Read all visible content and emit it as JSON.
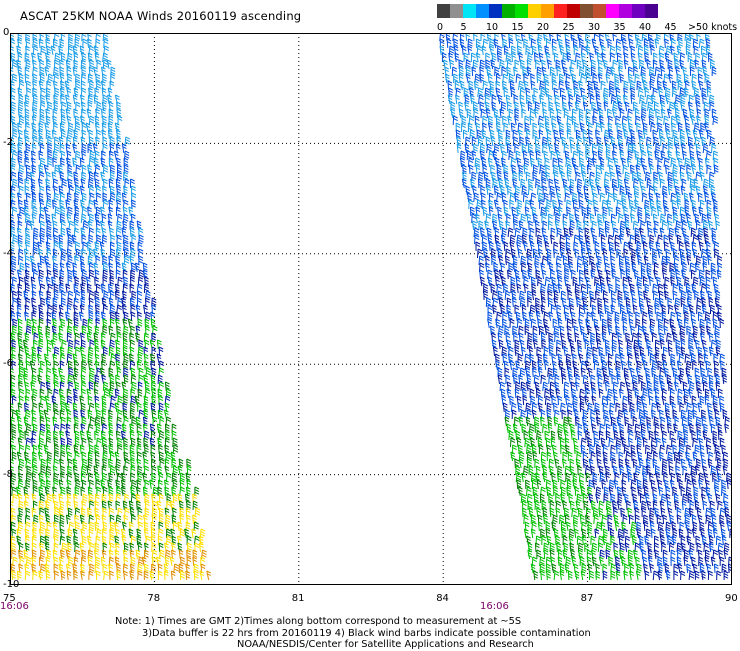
{
  "title": "ASCAT 25KM NOAA Winds 20160119 ascending",
  "legend": {
    "unit_label": ">50 knots",
    "labels": [
      "0",
      "5",
      "10",
      "15",
      "20",
      "25",
      "30",
      "35",
      "40",
      "45"
    ],
    "colors": [
      "#404040",
      "#909090",
      "#00e5f5",
      "#0090ff",
      "#0030c0",
      "#00b000",
      "#00e000",
      "#ffd000",
      "#ffa000",
      "#ff2020",
      "#c00000",
      "#805030",
      "#c05030",
      "#ff00ff",
      "#b000e0",
      "#7000c0",
      "#4a0090"
    ]
  },
  "axes": {
    "y_ticks": [
      "0",
      "-2",
      "-4",
      "-6",
      "-8",
      "-10"
    ],
    "x_ticks": [
      "75",
      "78",
      "81",
      "84",
      "87",
      "90"
    ],
    "time_labels": [
      "16:06",
      "16:06"
    ]
  },
  "swaths": [
    {
      "id": "west",
      "lon_range": [
        75,
        79.3
      ]
    },
    {
      "id": "east",
      "lon_range": [
        83.8,
        90
      ]
    }
  ],
  "wind_colors": {
    "light_blue": "#1a9de8",
    "blue": "#0050e0",
    "dark_blue": "#0018a0",
    "green": "#00c000",
    "dark_green": "#008000",
    "yellow": "#ffe000",
    "orange": "#e09000"
  },
  "notes": [
    "Note: 1) Times are GMT 2)Times along bottom correspond to measurement at ~5S",
    "3)Data buffer is 22 hrs from 20160119 4) Black wind barbs indicate possible contamination",
    "NOAA/NESDIS/Center for Satellite Applications and Research"
  ]
}
